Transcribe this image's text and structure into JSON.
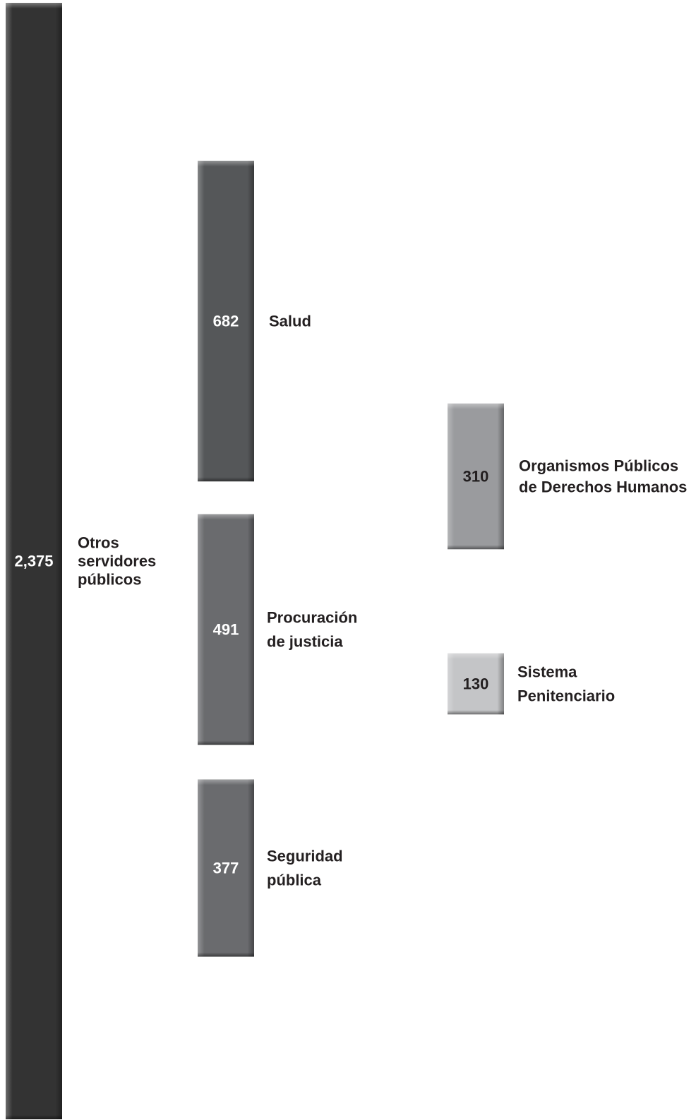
{
  "chart_data": {
    "type": "bar",
    "title": "",
    "xlabel": "",
    "ylabel": "",
    "bars": [
      {
        "value": 2375,
        "value_label": "2,375",
        "label_lines": [
          "Otros",
          "servidores",
          "públicos"
        ],
        "color": "#333333",
        "value_color": "#ffffff"
      },
      {
        "value": 682,
        "value_label": "682",
        "label_lines": [
          "Salud"
        ],
        "color": "#555759",
        "value_color": "#ffffff"
      },
      {
        "value": 491,
        "value_label": "491",
        "label_lines": [
          "Procuración",
          "de justicia"
        ],
        "color": "#6a6b6e",
        "value_color": "#ffffff"
      },
      {
        "value": 377,
        "value_label": "377",
        "label_lines": [
          "Seguridad",
          "pública"
        ],
        "color": "#6a6b6e",
        "value_color": "#ffffff"
      },
      {
        "value": 310,
        "value_label": "310",
        "label_lines": [
          "Organismos Públicos",
          "de Derechos Humanos"
        ],
        "color": "#9a9b9e",
        "value_color": "#231f20"
      },
      {
        "value": 130,
        "value_label": "130",
        "label_lines": [
          "Sistema",
          "Penitenciario"
        ],
        "color": "#c4c5c7",
        "value_color": "#231f20"
      }
    ]
  }
}
